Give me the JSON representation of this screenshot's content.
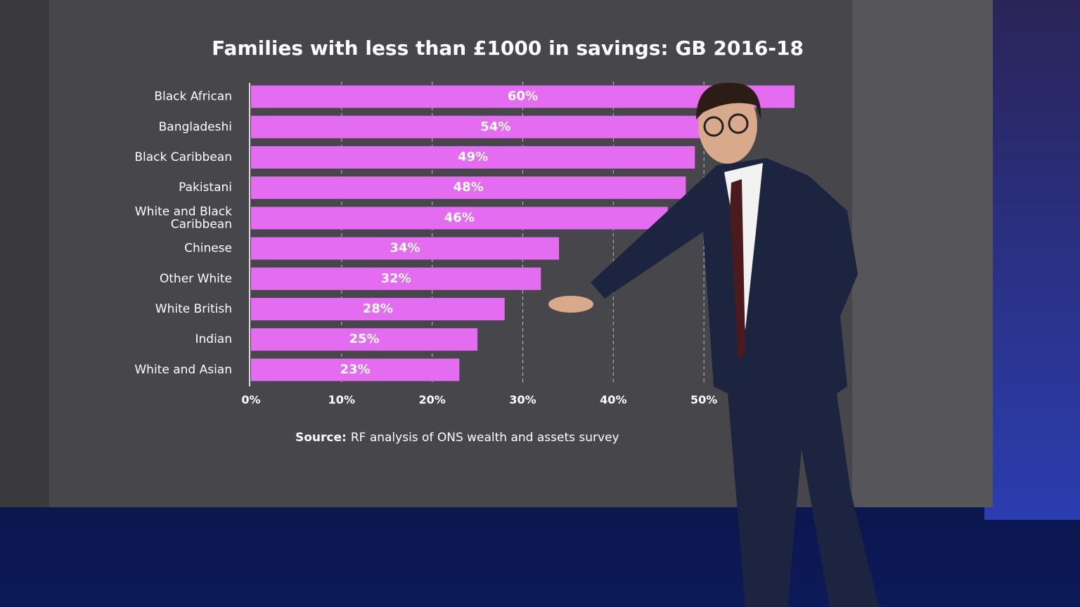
{
  "chart_data": {
    "type": "bar",
    "orientation": "horizontal",
    "title": "Families with less than £1000 in savings: GB 2016-18",
    "categories": [
      "Black African",
      "Bangladeshi",
      "Black Caribbean",
      "Pakistani",
      "White and Black Caribbean",
      "Chinese",
      "Other White",
      "White British",
      "Indian",
      "White and Asian"
    ],
    "values": [
      60,
      54,
      49,
      48,
      46,
      34,
      32,
      28,
      25,
      23
    ],
    "value_labels": [
      "60%",
      "54%",
      "49%",
      "48%",
      "46%",
      "34%",
      "32%",
      "28%",
      "25%",
      "23%"
    ],
    "color": "#e46cf0",
    "xlim": [
      0,
      60
    ],
    "xticks": [
      {
        "value": 0,
        "label": "0%"
      },
      {
        "value": 10,
        "label": "10%"
      },
      {
        "value": 20,
        "label": "20%"
      },
      {
        "value": 30,
        "label": "30%"
      },
      {
        "value": 40,
        "label": "40%"
      },
      {
        "value": 50,
        "label": "50%"
      }
    ],
    "grid": true,
    "source_label": "Source:",
    "source_text": "RF analysis of ONS wealth and assets survey"
  }
}
